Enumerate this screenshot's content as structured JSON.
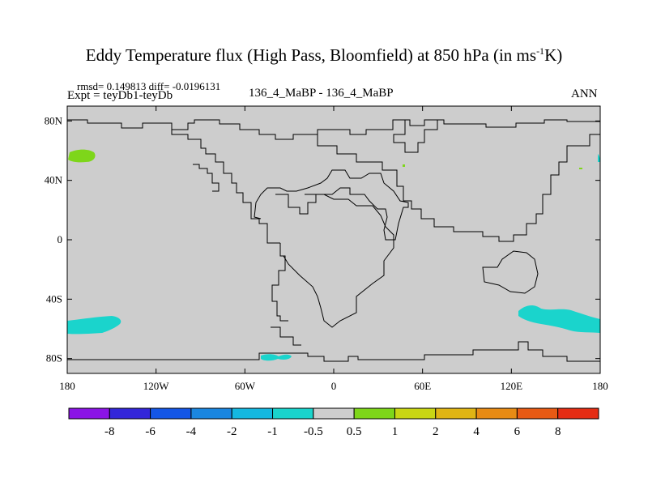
{
  "chart_data": {
    "type": "heatmap",
    "title": "Eddy Temperature flux (High Pass, Bloomfield) at 850 hPa (in ms",
    "title_sup": "-1",
    "title_end": "K)",
    "stats_line": "rmsd= 0.149813 diff= -0.0196131",
    "experiment_label": "Expt = teyDb1-teyDb",
    "center_label": "136_4_MaBP - 136_4_MaBP",
    "season_label": "ANN",
    "x_ticks": [
      "180",
      "120W",
      "60W",
      "0",
      "60E",
      "120E",
      "180"
    ],
    "y_ticks": [
      "80N",
      "40N",
      "0",
      "40S",
      "80S"
    ],
    "xlim": [
      -180,
      180
    ],
    "ylim": [
      -90,
      90
    ],
    "background_color": "#cdcdcd",
    "colorbar": {
      "levels": [
        "-8",
        "-6",
        "-4",
        "-2",
        "-1",
        "-0.5",
        "0.5",
        "1",
        "2",
        "4",
        "6",
        "8"
      ],
      "colors": [
        "#8b14e6",
        "#3326d9",
        "#1456e6",
        "#1a86e0",
        "#15b8e0",
        "#1ad4cc",
        "#cdcdcd",
        "#7ed61a",
        "#c9d614",
        "#e0b514",
        "#e88b14",
        "#e85a14",
        "#e52d14"
      ]
    },
    "features": [
      {
        "name": "north-pacific-positive",
        "value_range": "0.5 to 1",
        "color": "#7ed61a"
      },
      {
        "name": "south-pacific-negative",
        "value_range": "-1 to -0.5",
        "color": "#1ad4cc"
      },
      {
        "name": "antarctic-negative",
        "value_range": "-1 to -0.5",
        "color": "#1ad4cc"
      },
      {
        "name": "southern-ocean-indian-negative",
        "value_range": "-1 to -0.5",
        "color": "#1ad4cc"
      },
      {
        "name": "small-positive-africa",
        "value_range": "0.5 to 1",
        "color": "#7ed61a"
      }
    ]
  }
}
